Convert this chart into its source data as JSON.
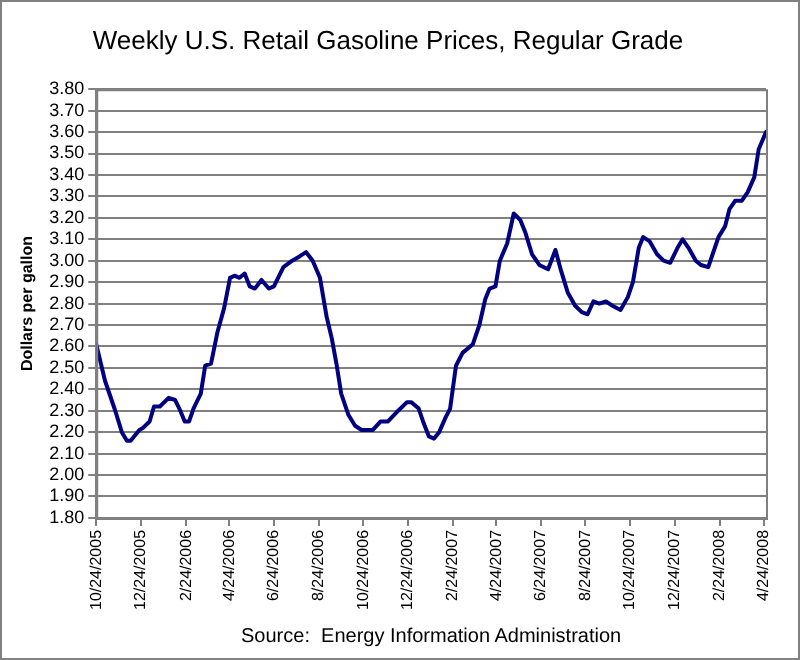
{
  "chart_data": {
    "type": "line",
    "title": "Weekly U.S. Retail Gasoline Prices, Regular Grade",
    "ylabel": "Dollars per gallon",
    "annotations": [
      "Source:  Energy Information Administration"
    ],
    "x": [
      "2005-10-24",
      "2005-11-05",
      "2005-11-19",
      "2005-11-28",
      "2005-12-05",
      "2005-12-10",
      "2005-12-22",
      "2005-12-27",
      "2006-01-05",
      "2006-01-11",
      "2006-01-19",
      "2006-01-31",
      "2006-02-09",
      "2006-02-16",
      "2006-02-22",
      "2006-02-28",
      "2006-03-06",
      "2006-03-16",
      "2006-03-22",
      "2006-03-30",
      "2006-04-08",
      "2006-04-17",
      "2006-04-25",
      "2006-05-01",
      "2006-05-08",
      "2006-05-15",
      "2006-05-22",
      "2006-05-29",
      "2006-06-07",
      "2006-06-17",
      "2006-06-24",
      "2006-07-07",
      "2006-07-19",
      "2006-07-29",
      "2006-08-07",
      "2006-08-16",
      "2006-08-26",
      "2006-09-04",
      "2006-09-11",
      "2006-09-18",
      "2006-09-24",
      "2006-10-04",
      "2006-10-13",
      "2006-10-22",
      "2006-11-01",
      "2006-11-06",
      "2006-11-17",
      "2006-11-27",
      "2006-12-11",
      "2006-12-23",
      "2006-12-29",
      "2007-01-08",
      "2007-01-14",
      "2007-01-22",
      "2007-01-29",
      "2007-02-05",
      "2007-02-14",
      "2007-02-20",
      "2007-02-28",
      "2007-03-09",
      "2007-03-23",
      "2007-04-01",
      "2007-04-09",
      "2007-04-15",
      "2007-04-23",
      "2007-04-29",
      "2007-05-09",
      "2007-05-18",
      "2007-05-27",
      "2007-06-03",
      "2007-06-12",
      "2007-06-22",
      "2007-07-04",
      "2007-07-14",
      "2007-07-22",
      "2007-07-31",
      "2007-08-10",
      "2007-08-19",
      "2007-08-27",
      "2007-09-04",
      "2007-09-12",
      "2007-09-21",
      "2007-09-30",
      "2007-10-11",
      "2007-10-21",
      "2007-10-28",
      "2007-11-05",
      "2007-11-11",
      "2007-11-20",
      "2007-11-30",
      "2007-12-09",
      "2007-12-18",
      "2007-12-28",
      "2008-01-04",
      "2008-01-12",
      "2008-01-22",
      "2008-01-29",
      "2008-02-08",
      "2008-02-14",
      "2008-02-22",
      "2008-03-02",
      "2008-03-08",
      "2008-03-16",
      "2008-03-25",
      "2008-04-02",
      "2008-04-11",
      "2008-04-17",
      "2008-04-27"
    ],
    "series": [
      {
        "color": "#000080",
        "values": [
          2.61,
          2.44,
          2.3,
          2.2,
          2.16,
          2.16,
          2.21,
          2.22,
          2.25,
          2.32,
          2.32,
          2.36,
          2.35,
          2.3,
          2.25,
          2.25,
          2.31,
          2.38,
          2.51,
          2.52,
          2.67,
          2.78,
          2.92,
          2.93,
          2.92,
          2.94,
          2.88,
          2.87,
          2.91,
          2.87,
          2.88,
          2.97,
          3.0,
          3.02,
          3.04,
          3.0,
          2.92,
          2.74,
          2.64,
          2.51,
          2.38,
          2.28,
          2.23,
          2.21,
          2.21,
          2.21,
          2.25,
          2.25,
          2.3,
          2.34,
          2.34,
          2.31,
          2.25,
          2.18,
          2.17,
          2.2,
          2.27,
          2.31,
          2.51,
          2.57,
          2.61,
          2.7,
          2.82,
          2.87,
          2.88,
          3.0,
          3.08,
          3.22,
          3.19,
          3.13,
          3.03,
          2.98,
          2.96,
          3.05,
          2.95,
          2.85,
          2.79,
          2.76,
          2.75,
          2.81,
          2.8,
          2.81,
          2.79,
          2.77,
          2.83,
          2.9,
          3.06,
          3.11,
          3.09,
          3.03,
          3.0,
          2.99,
          3.06,
          3.1,
          3.06,
          3.0,
          2.98,
          2.97,
          3.03,
          3.11,
          3.16,
          3.24,
          3.28,
          3.28,
          3.32,
          3.39,
          3.52,
          3.6
        ]
      }
    ],
    "xlim": [
      "2005-10-24",
      "2008-04-27"
    ],
    "xticks": [
      {
        "value": "2005-10-24",
        "label": "10/24/2005"
      },
      {
        "value": "2005-12-24",
        "label": "12/24/2005"
      },
      {
        "value": "2006-02-24",
        "label": "2/24/2006"
      },
      {
        "value": "2006-04-24",
        "label": "4/24/2006"
      },
      {
        "value": "2006-06-24",
        "label": "6/24/2006"
      },
      {
        "value": "2006-08-24",
        "label": "8/24/2006"
      },
      {
        "value": "2006-10-24",
        "label": "10/24/2006"
      },
      {
        "value": "2006-12-24",
        "label": "12/24/2006"
      },
      {
        "value": "2007-02-24",
        "label": "2/24/2007"
      },
      {
        "value": "2007-04-24",
        "label": "4/24/2007"
      },
      {
        "value": "2007-06-24",
        "label": "6/24/2007"
      },
      {
        "value": "2007-08-24",
        "label": "8/24/2007"
      },
      {
        "value": "2007-10-24",
        "label": "10/24/2007"
      },
      {
        "value": "2007-12-24",
        "label": "12/24/2007"
      },
      {
        "value": "2008-02-24",
        "label": "2/24/2008"
      },
      {
        "value": "2008-04-24",
        "label": "4/24/2008"
      }
    ],
    "ylim": [
      1.8,
      3.8
    ],
    "yticks": [
      {
        "value": 1.8,
        "label": "1.80"
      },
      {
        "value": 1.9,
        "label": "1.90"
      },
      {
        "value": 2.0,
        "label": "2.00"
      },
      {
        "value": 2.1,
        "label": "2.10"
      },
      {
        "value": 2.2,
        "label": "2.20"
      },
      {
        "value": 2.3,
        "label": "2.30"
      },
      {
        "value": 2.4,
        "label": "2.40"
      },
      {
        "value": 2.5,
        "label": "2.50"
      },
      {
        "value": 2.6,
        "label": "2.60"
      },
      {
        "value": 2.7,
        "label": "2.70"
      },
      {
        "value": 2.8,
        "label": "2.80"
      },
      {
        "value": 2.9,
        "label": "2.90"
      },
      {
        "value": 3.0,
        "label": "3.00"
      },
      {
        "value": 3.1,
        "label": "3.10"
      },
      {
        "value": 3.2,
        "label": "3.20"
      },
      {
        "value": 3.3,
        "label": "3.30"
      },
      {
        "value": 3.4,
        "label": "3.40"
      },
      {
        "value": 3.5,
        "label": "3.50"
      },
      {
        "value": 3.6,
        "label": "3.60"
      },
      {
        "value": 3.7,
        "label": "3.70"
      },
      {
        "value": 3.8,
        "label": "3.80"
      }
    ],
    "grid": "y",
    "legend": false,
    "marker": "none",
    "line_style": "solid"
  }
}
